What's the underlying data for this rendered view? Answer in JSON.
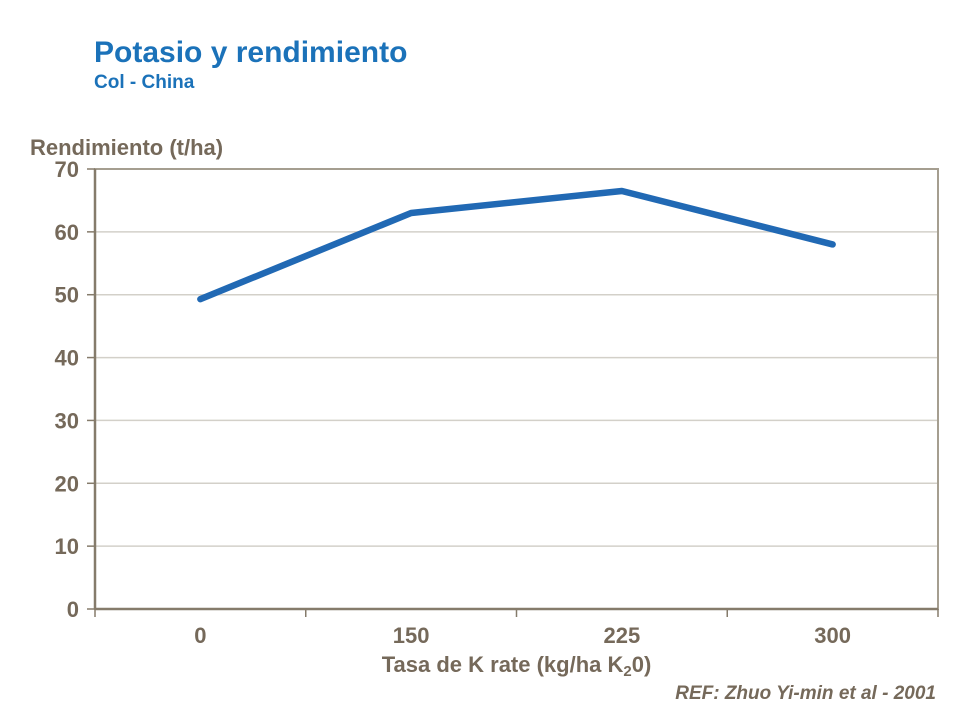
{
  "chart_data": {
    "type": "line",
    "title": "Potasio y rendimiento",
    "subtitle": "Col - China",
    "categories": [
      "0",
      "150",
      "225",
      "300"
    ],
    "series": [
      {
        "name": "rendimiento",
        "values": [
          49.3,
          63,
          66.5,
          58
        ]
      }
    ],
    "xlabel": "Tasa de K rate (kg/ha K20)",
    "xlabel_parts": {
      "main": "Tasa de K rate (kg/ha K",
      "sub": "2",
      "end": "0)"
    },
    "ylabel": "Rendimiento (t/ha)",
    "ylim": [
      0,
      70
    ],
    "yticks": [
      0,
      10,
      20,
      30,
      40,
      50,
      60,
      70
    ],
    "grid": "horizontal",
    "legend": "none"
  },
  "footer": {
    "ref": "REF: Zhuo Yi-min et al - 2001"
  },
  "colors": {
    "title_blue": "#1B72B9",
    "text_brown": "#75695A",
    "axis_brown": "#857B6B",
    "frame_gray": "#A59E90",
    "gridline_gray": "#D3D0C9",
    "line_blue": "#2169B4",
    "background": "#FFFFFF"
  }
}
